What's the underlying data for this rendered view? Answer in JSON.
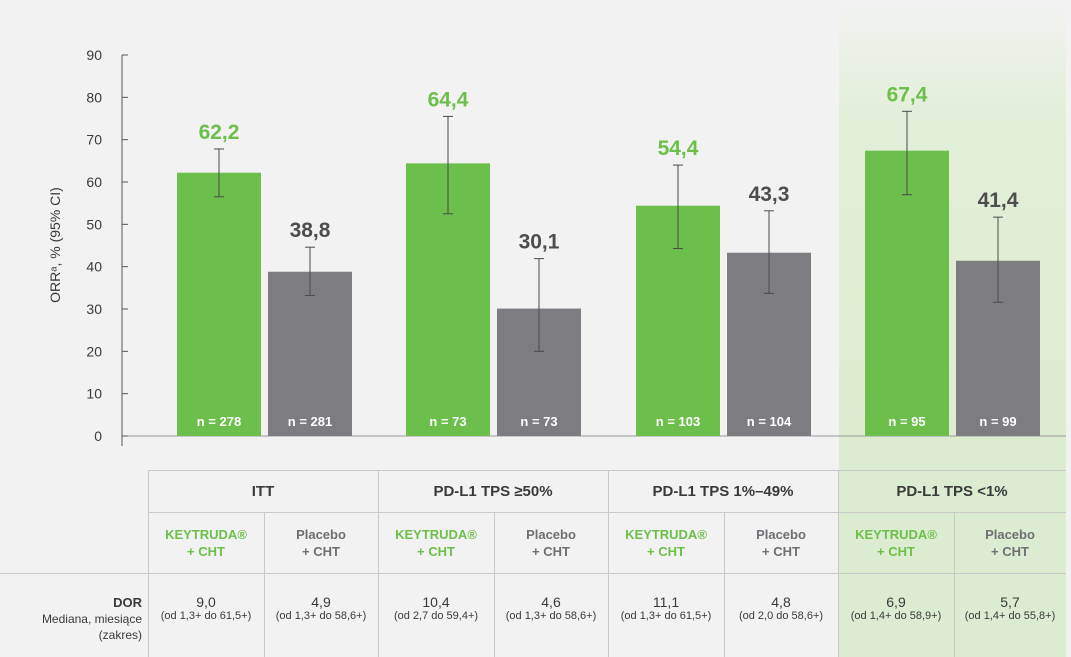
{
  "chart_data": {
    "type": "bar",
    "ylabel": "ORRᵃ, % (95% CI)",
    "ylim": [
      0,
      90
    ],
    "yticks": [
      0,
      10,
      20,
      30,
      40,
      50,
      60,
      70,
      80,
      90
    ],
    "categories": [
      "ITT",
      "PD-L1 TPS ≥50%",
      "PD-L1 TPS 1%–49%",
      "PD-L1 TPS <1%"
    ],
    "highlighted_category": "PD-L1 TPS <1%",
    "series": [
      {
        "name": "KEYTRUDA® + CHT",
        "color": "#6cbf4a",
        "values": [
          62.2,
          64.4,
          54.4,
          67.4
        ],
        "value_labels": [
          "62,2",
          "64,4",
          "54,4",
          "67,4"
        ],
        "ci_low": [
          56.5,
          52.5,
          44.3,
          57.0
        ],
        "ci_high": [
          67.8,
          75.5,
          64.0,
          76.7
        ],
        "n_labels": [
          "n = 278",
          "n = 73",
          "n = 103",
          "n = 95"
        ]
      },
      {
        "name": "Placebo + CHT",
        "color": "#7d7d81",
        "values": [
          38.8,
          30.1,
          43.3,
          41.4
        ],
        "value_labels": [
          "38,8",
          "30,1",
          "43,3",
          "41,4"
        ],
        "ci_low": [
          33.2,
          20.0,
          33.7,
          31.6
        ],
        "ci_high": [
          44.6,
          41.9,
          53.2,
          51.7
        ],
        "n_labels": [
          "n = 281",
          "n = 73",
          "n = 104",
          "n = 99"
        ]
      }
    ]
  },
  "table": {
    "groups": [
      "ITT",
      "PD-L1 TPS ≥50%",
      "PD-L1 TPS 1%–49%",
      "PD-L1 TPS <1%"
    ],
    "arm_line1": [
      "KEYTRUDA®",
      "Placebo"
    ],
    "arm_line2": [
      "+ CHT",
      "+ CHT"
    ],
    "row_label_bold": "DOR",
    "row_label_line2": "Mediana, miesiące",
    "row_label_line3": "(zakres)",
    "dor_values": [
      "9,0",
      "4,9",
      "10,4",
      "4,6",
      "11,1",
      "4,8",
      "6,9",
      "5,7"
    ],
    "dor_ranges": [
      "(od 1,3+ do 61,5+)",
      "(od 1,3+ do 58,6+)",
      "(od 2,7 do 59,4+)",
      "(od 1,3+ do 58,6+)",
      "(od 1,3+ do 61,5+)",
      "(od 2,0 do 58,6+)",
      "(od 1,4+ do 58,9+)",
      "(od 1,4+ do 55,8+)"
    ]
  },
  "colors": {
    "keytruda_green": "#6cbf4a",
    "placebo_gray": "#7d7d81",
    "highlight_bg": "#e3efd9"
  }
}
